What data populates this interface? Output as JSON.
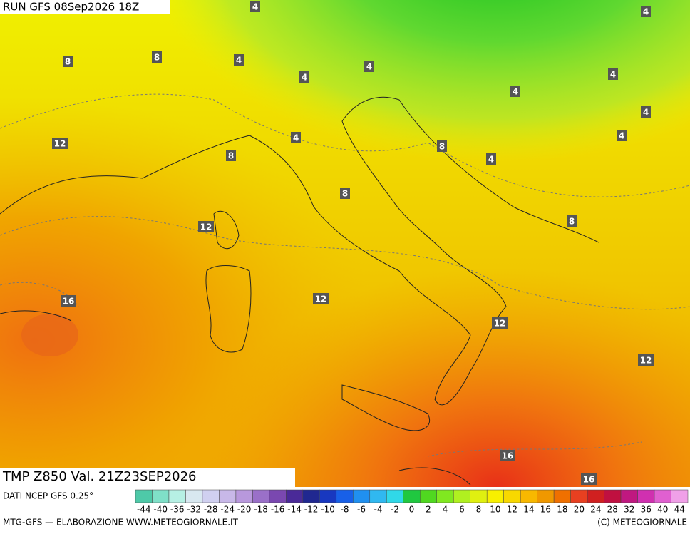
{
  "header": {
    "run": "RUN GFS 08Sep2026 18Z",
    "field": "TMP Z850 Val. 21Z23SEP2026"
  },
  "source": "DATI NCEP GFS 0.25°",
  "footer": {
    "left": "MTG-GFS — ELABORAZIONE WWW.METEOGIORNALE.IT",
    "right": "(C) METEOGIORNALE"
  },
  "contour_labels": [
    4,
    4,
    8,
    8,
    4,
    4,
    4,
    4,
    4,
    4,
    4,
    12,
    4,
    8,
    8,
    4,
    8,
    8,
    12,
    16,
    12,
    12,
    12,
    16,
    16
  ],
  "colorbar": {
    "labels": [
      -44,
      -40,
      -36,
      -32,
      -28,
      -24,
      -20,
      -18,
      -16,
      -14,
      -12,
      -10,
      -8,
      -6,
      -4,
      -2,
      0,
      2,
      4,
      6,
      8,
      10,
      12,
      14,
      16,
      18,
      20,
      24,
      28,
      32,
      36,
      40,
      44
    ],
    "colors": [
      "#4ec9a8",
      "#7fe0c8",
      "#b6f0e4",
      "#d8e8f0",
      "#d0d0f0",
      "#c8b8e8",
      "#b898dc",
      "#9a70c8",
      "#7a48b0",
      "#4a2a98",
      "#202890",
      "#1838c0",
      "#1860e8",
      "#2090f0",
      "#30b8f0",
      "#30d8e8",
      "#20c840",
      "#50d820",
      "#80e820",
      "#b0f020",
      "#e0f010",
      "#f8f000",
      "#f8d800",
      "#f8b800",
      "#f09800",
      "#f07000",
      "#e84020",
      "#d02020",
      "#c01040",
      "#c01880",
      "#d030b0",
      "#e060d0",
      "#f0a0e8"
    ]
  }
}
